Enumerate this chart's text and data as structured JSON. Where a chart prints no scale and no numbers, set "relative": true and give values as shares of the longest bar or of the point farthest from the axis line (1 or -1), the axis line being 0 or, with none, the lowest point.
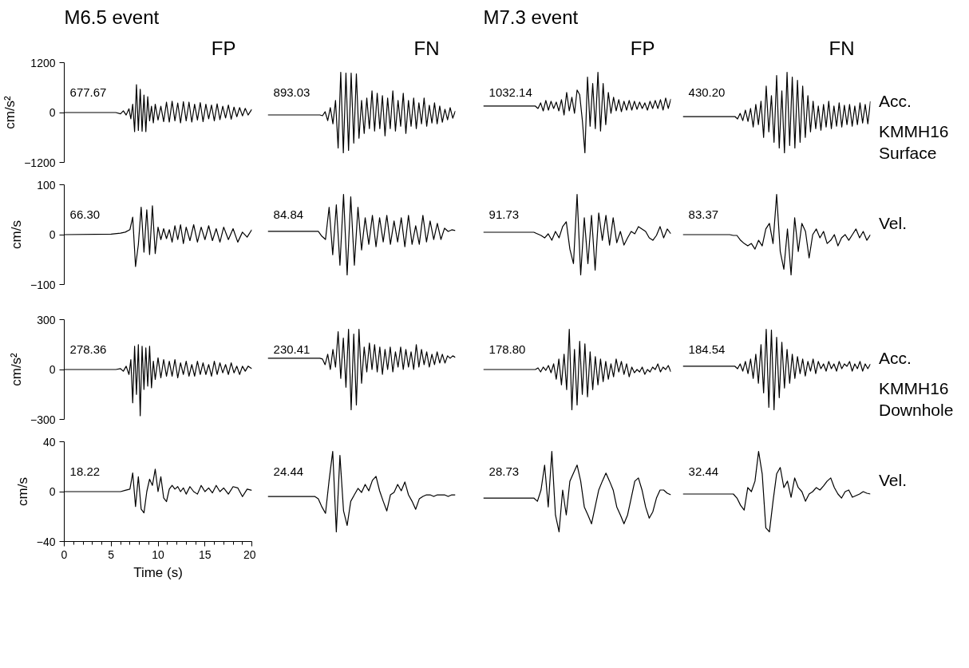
{
  "chart_data": [
    {
      "type": "line",
      "title": "M6.5 event",
      "subtitle": "FP",
      "ylabel": "cm/s²",
      "tick_labels": "y",
      "xlim": [
        0,
        20
      ],
      "ylim": [
        -1200,
        1200
      ],
      "yticks": [
        -1200,
        0,
        1200
      ],
      "annotations": [
        "677.67"
      ],
      "x": [
        0,
        5.5,
        6,
        6.3,
        6.6,
        6.9,
        7.1,
        7.3,
        7.5,
        7.7,
        7.9,
        8.1,
        8.3,
        8.5,
        8.7,
        8.9,
        9.1,
        9.3,
        9.5,
        9.7,
        10,
        10.3,
        10.6,
        10.9,
        11.2,
        11.5,
        11.8,
        12.1,
        12.4,
        12.7,
        13,
        13.3,
        13.6,
        13.9,
        14.2,
        14.5,
        14.8,
        15.1,
        15.4,
        15.7,
        16,
        16.3,
        16.6,
        16.9,
        17.2,
        17.5,
        17.8,
        18.1,
        18.4,
        18.7,
        19,
        19.3,
        19.6,
        20
      ],
      "series": [
        {
          "color": "#000000",
          "values": [
            0,
            0,
            -30,
            40,
            -60,
            90,
            -150,
            200,
            -460,
            670,
            -430,
            560,
            -450,
            420,
            -460,
            380,
            -200,
            150,
            -250,
            200,
            -180,
            150,
            -220,
            250,
            -230,
            270,
            -200,
            230,
            -250,
            260,
            -200,
            250,
            -230,
            200,
            -180,
            240,
            -220,
            200,
            -150,
            180,
            -200,
            210,
            -170,
            150,
            -130,
            180,
            -160,
            130,
            -100,
            120,
            -80,
            100,
            -60,
            80
          ]
        }
      ]
    },
    {
      "type": "line",
      "subtitle": "FN",
      "relative": true,
      "tick_labels": false,
      "annotations": [
        "893.03"
      ],
      "categories": [
        null,
        null,
        null,
        null,
        null,
        null,
        null,
        null,
        null,
        null,
        null,
        null,
        null,
        null,
        null,
        null,
        null,
        null,
        null,
        null,
        null,
        null,
        null,
        null,
        null,
        null,
        null,
        null,
        null,
        null,
        null,
        null,
        null,
        null,
        null,
        null,
        null,
        null,
        null,
        null,
        null,
        null,
        null,
        null,
        null,
        null,
        null,
        null,
        null,
        null,
        null,
        null,
        null,
        null,
        null,
        null,
        null,
        null,
        null,
        null,
        null,
        null,
        null,
        null,
        null,
        null,
        null,
        null,
        null,
        null,
        null,
        null,
        null
      ],
      "series": [
        {
          "color": "#000000",
          "values": [
            0.47,
            0.47,
            0.47,
            0.47,
            0.47,
            0.47,
            0.47,
            0.47,
            0.47,
            0.47,
            0.47,
            0.47,
            0.47,
            0.47,
            0.47,
            0.47,
            0.47,
            0.47,
            0.47,
            0.47,
            0.47,
            0.46,
            0.51,
            0.4,
            0.56,
            0.36,
            0.65,
            0.06,
            1,
            0,
            0.99,
            0.03,
            0.99,
            0.12,
            0.98,
            0.18,
            0.65,
            0.24,
            0.68,
            0.3,
            0.77,
            0.27,
            0.74,
            0.3,
            0.71,
            0.21,
            0.68,
            0.3,
            0.77,
            0.27,
            0.65,
            0.33,
            0.74,
            0.24,
            0.65,
            0.33,
            0.68,
            0.3,
            0.62,
            0.36,
            0.68,
            0.33,
            0.59,
            0.37,
            0.62,
            0.36,
            0.58,
            0.38,
            0.54,
            0.41,
            0.56,
            0.43,
            0.52
          ]
        }
      ]
    },
    {
      "type": "line",
      "title": "M7.3 event",
      "subtitle": "FP",
      "relative": true,
      "tick_labels": false,
      "annotations": [
        "1032.14"
      ],
      "categories": [
        null,
        null,
        null,
        null,
        null,
        null,
        null,
        null,
        null,
        null,
        null,
        null,
        null,
        null,
        null,
        null,
        null,
        null,
        null,
        null,
        null,
        null,
        null,
        null,
        null,
        null,
        null,
        null,
        null,
        null,
        null,
        null,
        null,
        null,
        null,
        null,
        null,
        null,
        null,
        null,
        null,
        null,
        null,
        null,
        null,
        null,
        null,
        null,
        null,
        null,
        null,
        null,
        null,
        null,
        null,
        null,
        null,
        null,
        null,
        null,
        null,
        null,
        null,
        null,
        null,
        null,
        null,
        null,
        null,
        null,
        null,
        null,
        null
      ],
      "series": [
        {
          "color": "#000000",
          "values": [
            0.58,
            0.58,
            0.58,
            0.58,
            0.58,
            0.58,
            0.58,
            0.58,
            0.58,
            0.58,
            0.58,
            0.58,
            0.58,
            0.58,
            0.58,
            0.58,
            0.58,
            0.58,
            0.58,
            0.58,
            0.58,
            0.55,
            0.62,
            0.52,
            0.65,
            0.53,
            0.64,
            0.55,
            0.63,
            0.52,
            0.66,
            0.47,
            0.75,
            0.52,
            0.69,
            0.49,
            0.78,
            0.72,
            0.41,
            0,
            0.94,
            0.33,
            0.86,
            0.3,
            1,
            0.27,
            0.86,
            0.35,
            0.75,
            0.49,
            0.69,
            0.52,
            0.66,
            0.51,
            0.64,
            0.53,
            0.65,
            0.53,
            0.64,
            0.54,
            0.63,
            0.55,
            0.62,
            0.53,
            0.64,
            0.55,
            0.65,
            0.55,
            0.66,
            0.53,
            0.68,
            0.55,
            0.67
          ]
        }
      ]
    },
    {
      "type": "line",
      "subtitle": "FN",
      "relative": true,
      "tick_labels": false,
      "annotations": [
        "430.20",
        "Acc.",
        "KMMH16\nSurface"
      ],
      "categories": [
        null,
        null,
        null,
        null,
        null,
        null,
        null,
        null,
        null,
        null,
        null,
        null,
        null,
        null,
        null,
        null,
        null,
        null,
        null,
        null,
        null,
        null,
        null,
        null,
        null,
        null,
        null,
        null,
        null,
        null,
        null,
        null,
        null,
        null,
        null,
        null,
        null,
        null,
        null,
        null,
        null,
        null,
        null,
        null,
        null,
        null,
        null,
        null,
        null,
        null,
        null,
        null,
        null,
        null,
        null,
        null,
        null,
        null,
        null,
        null,
        null,
        null,
        null,
        null,
        null,
        null,
        null,
        null,
        null,
        null,
        null,
        null,
        null
      ],
      "series": [
        {
          "color": "#000000",
          "values": [
            0.45,
            0.45,
            0.45,
            0.45,
            0.45,
            0.45,
            0.45,
            0.45,
            0.45,
            0.45,
            0.45,
            0.45,
            0.45,
            0.45,
            0.45,
            0.45,
            0.45,
            0.45,
            0.45,
            0.45,
            0.45,
            0.42,
            0.49,
            0.4,
            0.53,
            0.39,
            0.55,
            0.32,
            0.6,
            0.35,
            0.64,
            0.19,
            0.83,
            0.26,
            0.71,
            0.13,
            0.96,
            0.06,
            0.77,
            0,
            1,
            0.09,
            0.94,
            0.06,
            0.9,
            0.13,
            0.83,
            0.19,
            0.71,
            0.26,
            0.64,
            0.3,
            0.58,
            0.28,
            0.6,
            0.32,
            0.64,
            0.3,
            0.58,
            0.33,
            0.62,
            0.32,
            0.59,
            0.35,
            0.6,
            0.33,
            0.58,
            0.35,
            0.62,
            0.37,
            0.6,
            0.36,
            0.64
          ]
        }
      ]
    },
    {
      "type": "line",
      "ylabel": "cm/s",
      "tick_labels": "y",
      "xlim": [
        0,
        20
      ],
      "ylim": [
        -100,
        100
      ],
      "yticks": [
        -100,
        0,
        100
      ],
      "annotations": [
        "66.30"
      ],
      "x": [
        0,
        5,
        6,
        6.5,
        7,
        7.3,
        7.6,
        7.9,
        8.2,
        8.5,
        8.8,
        9.1,
        9.4,
        9.7,
        10,
        10.3,
        10.6,
        10.9,
        11.2,
        11.5,
        11.8,
        12.1,
        12.4,
        12.7,
        13,
        13.4,
        13.8,
        14.2,
        14.6,
        15,
        15.4,
        15.8,
        16.2,
        16.6,
        17,
        17.5,
        18,
        18.5,
        19,
        19.5,
        20
      ],
      "series": [
        {
          "color": "#000000",
          "values": [
            0,
            1,
            3,
            5,
            10,
            35,
            -64,
            -20,
            55,
            -35,
            50,
            -40,
            58,
            -38,
            15,
            -10,
            12,
            -8,
            10,
            -15,
            18,
            -10,
            20,
            -18,
            15,
            -12,
            20,
            -15,
            15,
            -10,
            18,
            -12,
            12,
            -15,
            15,
            -10,
            12,
            -15,
            5,
            -5,
            10
          ]
        }
      ]
    },
    {
      "type": "line",
      "relative": true,
      "tick_labels": false,
      "annotations": [
        "84.84"
      ],
      "categories": [
        null,
        null,
        null,
        null,
        null,
        null,
        null,
        null,
        null,
        null,
        null,
        null,
        null,
        null,
        null,
        null,
        null,
        null,
        null,
        null,
        null,
        null,
        null,
        null,
        null,
        null,
        null,
        null,
        null,
        null,
        null,
        null,
        null,
        null,
        null,
        null,
        null,
        null,
        null,
        null,
        null,
        null,
        null,
        null,
        null,
        null,
        null,
        null,
        null,
        null,
        null,
        null,
        null
      ],
      "series": [
        {
          "color": "#000000",
          "values": [
            0.54,
            0.54,
            0.54,
            0.54,
            0.54,
            0.54,
            0.54,
            0.54,
            0.54,
            0.54,
            0.54,
            0.54,
            0.54,
            0.54,
            0.54,
            0.48,
            0.44,
            0.84,
            0.25,
            0.87,
            0.12,
            1,
            0,
            0.97,
            0.12,
            0.84,
            0.31,
            0.71,
            0.38,
            0.74,
            0.35,
            0.71,
            0.41,
            0.74,
            0.38,
            0.67,
            0.41,
            0.71,
            0.35,
            0.74,
            0.38,
            0.61,
            0.38,
            0.74,
            0.41,
            0.67,
            0.44,
            0.64,
            0.44,
            0.58,
            0.54,
            0.56,
            0.55
          ]
        }
      ]
    },
    {
      "type": "line",
      "relative": true,
      "tick_labels": false,
      "annotations": [
        "91.73"
      ],
      "categories": [
        null,
        null,
        null,
        null,
        null,
        null,
        null,
        null,
        null,
        null,
        null,
        null,
        null,
        null,
        null,
        null,
        null,
        null,
        null,
        null,
        null,
        null,
        null,
        null,
        null,
        null,
        null,
        null,
        null,
        null,
        null,
        null,
        null,
        null,
        null,
        null,
        null,
        null,
        null,
        null,
        null,
        null,
        null,
        null,
        null,
        null,
        null,
        null,
        null,
        null,
        null,
        null,
        null
      ],
      "series": [
        {
          "color": "#000000",
          "values": [
            0.53,
            0.53,
            0.53,
            0.53,
            0.53,
            0.53,
            0.53,
            0.53,
            0.53,
            0.53,
            0.53,
            0.53,
            0.53,
            0.53,
            0.53,
            0.51,
            0.49,
            0.46,
            0.51,
            0.43,
            0.54,
            0.46,
            0.6,
            0.66,
            0.32,
            0.14,
            1,
            0,
            0.71,
            0.14,
            0.74,
            0.06,
            0.77,
            0.43,
            0.74,
            0.37,
            0.71,
            0.4,
            0.54,
            0.37,
            0.46,
            0.54,
            0.51,
            0.6,
            0.57,
            0.54,
            0.46,
            0.43,
            0.49,
            0.6,
            0.46,
            0.57,
            0.51
          ]
        }
      ]
    },
    {
      "type": "line",
      "relative": true,
      "tick_labels": false,
      "annotations": [
        "83.37",
        "Vel."
      ],
      "categories": [
        null,
        null,
        null,
        null,
        null,
        null,
        null,
        null,
        null,
        null,
        null,
        null,
        null,
        null,
        null,
        null,
        null,
        null,
        null,
        null,
        null,
        null,
        null,
        null,
        null,
        null,
        null,
        null,
        null,
        null,
        null,
        null,
        null,
        null,
        null,
        null,
        null,
        null,
        null,
        null,
        null,
        null,
        null,
        null,
        null,
        null,
        null,
        null,
        null,
        null,
        null,
        null,
        null
      ],
      "series": [
        {
          "color": "#000000",
          "values": [
            0.5,
            0.5,
            0.5,
            0.5,
            0.5,
            0.5,
            0.5,
            0.5,
            0.5,
            0.5,
            0.5,
            0.5,
            0.5,
            0.5,
            0.49,
            0.49,
            0.43,
            0.39,
            0.36,
            0.39,
            0.32,
            0.43,
            0.36,
            0.57,
            0.64,
            0.39,
            1,
            0.29,
            0.07,
            0.57,
            0,
            0.71,
            0.29,
            0.64,
            0.54,
            0.21,
            0.5,
            0.57,
            0.46,
            0.54,
            0.39,
            0.43,
            0.5,
            0.36,
            0.46,
            0.5,
            0.43,
            0.5,
            0.57,
            0.46,
            0.54,
            0.43,
            0.5
          ]
        }
      ]
    },
    {
      "type": "line",
      "ylabel": "cm/s²",
      "tick_labels": "y",
      "xlim": [
        0,
        20
      ],
      "ylim": [
        -300,
        300
      ],
      "yticks": [
        -300,
        0,
        300
      ],
      "annotations": [
        "278.36"
      ],
      "x": [
        0,
        5.5,
        6,
        6.3,
        6.6,
        6.9,
        7.1,
        7.3,
        7.5,
        7.7,
        7.9,
        8.1,
        8.3,
        8.5,
        8.7,
        8.9,
        9.1,
        9.3,
        9.5,
        9.7,
        10,
        10.3,
        10.6,
        10.9,
        11.2,
        11.5,
        11.8,
        12.1,
        12.4,
        12.7,
        13,
        13.3,
        13.6,
        13.9,
        14.2,
        14.5,
        14.8,
        15.1,
        15.4,
        15.7,
        16,
        16.3,
        16.6,
        16.9,
        17.2,
        17.5,
        17.8,
        18.1,
        18.4,
        18.7,
        19,
        19.3,
        19.6,
        20
      ],
      "series": [
        {
          "color": "#000000",
          "values": [
            0,
            0,
            5,
            -10,
            20,
            -30,
            60,
            -200,
            140,
            -150,
            150,
            -278,
            140,
            -120,
            130,
            -100,
            140,
            -110,
            50,
            -60,
            70,
            -50,
            60,
            -40,
            50,
            -40,
            60,
            -50,
            40,
            -30,
            50,
            -40,
            30,
            -40,
            50,
            -30,
            40,
            -30,
            30,
            -40,
            50,
            -30,
            40,
            -20,
            30,
            -30,
            40,
            -20,
            20,
            -30,
            20,
            -10,
            20,
            5
          ]
        }
      ]
    },
    {
      "type": "line",
      "relative": true,
      "tick_labels": false,
      "annotations": [
        "230.41"
      ],
      "categories": [
        null,
        null,
        null,
        null,
        null,
        null,
        null,
        null,
        null,
        null,
        null,
        null,
        null,
        null,
        null,
        null,
        null,
        null,
        null,
        null,
        null,
        null,
        null,
        null,
        null,
        null,
        null,
        null,
        null,
        null,
        null,
        null,
        null,
        null,
        null,
        null,
        null,
        null,
        null,
        null,
        null,
        null,
        null,
        null,
        null,
        null,
        null,
        null,
        null,
        null,
        null,
        null,
        null,
        null,
        null,
        null,
        null,
        null,
        null,
        null,
        null,
        null,
        null,
        null,
        null,
        null,
        null,
        null,
        null,
        null,
        null,
        null,
        null
      ],
      "series": [
        {
          "color": "#000000",
          "values": [
            0.64,
            0.64,
            0.64,
            0.64,
            0.64,
            0.64,
            0.64,
            0.64,
            0.64,
            0.64,
            0.64,
            0.64,
            0.64,
            0.64,
            0.64,
            0.64,
            0.64,
            0.64,
            0.64,
            0.64,
            0.64,
            0.63,
            0.56,
            0.69,
            0.5,
            0.75,
            0.53,
            0.97,
            0.39,
            0.89,
            0.28,
            1,
            0,
            0.94,
            0.06,
            1,
            0.33,
            0.78,
            0.47,
            0.83,
            0.5,
            0.81,
            0.47,
            0.78,
            0.44,
            0.75,
            0.5,
            0.78,
            0.47,
            0.72,
            0.53,
            0.78,
            0.5,
            0.75,
            0.53,
            0.72,
            0.5,
            0.81,
            0.53,
            0.75,
            0.56,
            0.72,
            0.53,
            0.69,
            0.56,
            0.72,
            0.58,
            0.69,
            0.58,
            0.67,
            0.64,
            0.67,
            0.65
          ]
        }
      ]
    },
    {
      "type": "line",
      "relative": true,
      "tick_labels": false,
      "annotations": [
        "178.80"
      ],
      "categories": [
        null,
        null,
        null,
        null,
        null,
        null,
        null,
        null,
        null,
        null,
        null,
        null,
        null,
        null,
        null,
        null,
        null,
        null,
        null,
        null,
        null,
        null,
        null,
        null,
        null,
        null,
        null,
        null,
        null,
        null,
        null,
        null,
        null,
        null,
        null,
        null,
        null,
        null,
        null,
        null,
        null,
        null,
        null,
        null,
        null,
        null,
        null,
        null,
        null,
        null,
        null,
        null,
        null,
        null,
        null,
        null,
        null,
        null,
        null,
        null,
        null,
        null,
        null,
        null,
        null,
        null,
        null,
        null,
        null,
        null,
        null,
        null,
        null
      ],
      "series": [
        {
          "color": "#000000",
          "values": [
            0.5,
            0.5,
            0.5,
            0.5,
            0.5,
            0.5,
            0.5,
            0.5,
            0.5,
            0.5,
            0.5,
            0.5,
            0.5,
            0.5,
            0.5,
            0.5,
            0.5,
            0.5,
            0.5,
            0.5,
            0.5,
            0.52,
            0.47,
            0.53,
            0.49,
            0.55,
            0.46,
            0.57,
            0.38,
            0.63,
            0.31,
            0.69,
            0.25,
            1,
            0,
            0.75,
            0.06,
            0.85,
            0.19,
            0.82,
            0.16,
            0.72,
            0.25,
            0.66,
            0.31,
            0.63,
            0.35,
            0.6,
            0.38,
            0.57,
            0.41,
            0.63,
            0.47,
            0.6,
            0.44,
            0.57,
            0.41,
            0.53,
            0.46,
            0.5,
            0.47,
            0.53,
            0.44,
            0.5,
            0.47,
            0.53,
            0.5,
            0.57,
            0.47,
            0.53,
            0.5,
            0.55,
            0.47
          ]
        }
      ]
    },
    {
      "type": "line",
      "relative": true,
      "tick_labels": false,
      "annotations": [
        "184.54",
        "Acc.",
        "KMMH16\nDownhole"
      ],
      "categories": [
        null,
        null,
        null,
        null,
        null,
        null,
        null,
        null,
        null,
        null,
        null,
        null,
        null,
        null,
        null,
        null,
        null,
        null,
        null,
        null,
        null,
        null,
        null,
        null,
        null,
        null,
        null,
        null,
        null,
        null,
        null,
        null,
        null,
        null,
        null,
        null,
        null,
        null,
        null,
        null,
        null,
        null,
        null,
        null,
        null,
        null,
        null,
        null,
        null,
        null,
        null,
        null,
        null,
        null,
        null,
        null,
        null,
        null,
        null,
        null,
        null,
        null,
        null,
        null,
        null,
        null,
        null,
        null,
        null,
        null,
        null,
        null,
        null
      ],
      "series": [
        {
          "color": "#000000",
          "values": [
            0.54,
            0.54,
            0.54,
            0.54,
            0.54,
            0.54,
            0.54,
            0.54,
            0.54,
            0.54,
            0.54,
            0.54,
            0.54,
            0.54,
            0.54,
            0.54,
            0.54,
            0.54,
            0.54,
            0.54,
            0.54,
            0.51,
            0.57,
            0.48,
            0.6,
            0.45,
            0.63,
            0.39,
            0.69,
            0.33,
            0.81,
            0.21,
            1,
            0.03,
            0.99,
            0,
            0.9,
            0.15,
            0.84,
            0.27,
            0.75,
            0.33,
            0.69,
            0.39,
            0.66,
            0.45,
            0.63,
            0.42,
            0.6,
            0.48,
            0.63,
            0.45,
            0.6,
            0.51,
            0.57,
            0.48,
            0.6,
            0.51,
            0.57,
            0.48,
            0.6,
            0.51,
            0.57,
            0.54,
            0.6,
            0.48,
            0.57,
            0.51,
            0.6,
            0.48,
            0.57,
            0.51,
            0.57
          ]
        }
      ]
    },
    {
      "type": "line",
      "ylabel": "cm/s",
      "xlabel": "Time (s)",
      "xlim": [
        0,
        20
      ],
      "ylim": [
        -40,
        40
      ],
      "yticks": [
        -40,
        0,
        40
      ],
      "annotations": [
        "18.22"
      ],
      "xticks": [
        0,
        {
          "value": 1,
          "label": null
        },
        {
          "value": 2,
          "label": null
        },
        {
          "value": 3,
          "label": null
        },
        {
          "value": 4,
          "label": null
        },
        5,
        {
          "value": 6,
          "label": null
        },
        {
          "value": 7,
          "label": null
        },
        {
          "value": 8,
          "label": null
        },
        {
          "value": 9,
          "label": null
        },
        10,
        {
          "value": 11,
          "label": null
        },
        {
          "value": 12,
          "label": null
        },
        {
          "value": 13,
          "label": null
        },
        {
          "value": 14,
          "label": null
        },
        15,
        {
          "value": 16,
          "label": null
        },
        {
          "value": 17,
          "label": null
        },
        {
          "value": 18,
          "label": null
        },
        {
          "value": 19,
          "label": null
        },
        20
      ],
      "x": [
        0,
        5,
        6,
        6.5,
        7,
        7.3,
        7.6,
        7.9,
        8.2,
        8.5,
        8.8,
        9.1,
        9.4,
        9.7,
        10,
        10.3,
        10.6,
        10.9,
        11.2,
        11.5,
        11.8,
        12.1,
        12.4,
        12.7,
        13,
        13.4,
        13.8,
        14.2,
        14.6,
        15,
        15.4,
        15.8,
        16.2,
        16.6,
        17,
        17.5,
        18,
        18.5,
        19,
        19.5,
        20
      ],
      "series": [
        {
          "color": "#000000",
          "values": [
            0,
            0,
            0,
            1,
            2,
            15,
            -12,
            12,
            -14,
            -17,
            0,
            10,
            5,
            18,
            0,
            12,
            -5,
            -8,
            2,
            5,
            2,
            4,
            0,
            3,
            -2,
            4,
            0,
            -2,
            5,
            0,
            3,
            -1,
            5,
            0,
            3,
            -2,
            4,
            3,
            -4,
            2,
            1
          ]
        }
      ]
    },
    {
      "type": "line",
      "relative": true,
      "tick_labels": false,
      "annotations": [
        "24.44"
      ],
      "categories": [
        null,
        null,
        null,
        null,
        null,
        null,
        null,
        null,
        null,
        null,
        null,
        null,
        null,
        null,
        null,
        null,
        null,
        null,
        null,
        null,
        null,
        null,
        null,
        null,
        null,
        null,
        null,
        null,
        null,
        null,
        null,
        null,
        null,
        null,
        null,
        null,
        null,
        null,
        null,
        null,
        null,
        null,
        null,
        null,
        null,
        null,
        null,
        null,
        null,
        null,
        null,
        null,
        null
      ],
      "series": [
        {
          "color": "#000000",
          "values": [
            0.44,
            0.44,
            0.44,
            0.44,
            0.44,
            0.44,
            0.44,
            0.44,
            0.44,
            0.44,
            0.44,
            0.44,
            0.44,
            0.44,
            0.41,
            0.31,
            0.23,
            0.64,
            1,
            0,
            0.95,
            0.26,
            0.08,
            0.38,
            0.46,
            0.54,
            0.49,
            0.59,
            0.51,
            0.64,
            0.69,
            0.51,
            0.38,
            0.26,
            0.46,
            0.49,
            0.59,
            0.51,
            0.62,
            0.46,
            0.38,
            0.28,
            0.41,
            0.44,
            0.46,
            0.46,
            0.44,
            0.46,
            0.46,
            0.46,
            0.44,
            0.46,
            0.46
          ]
        }
      ]
    },
    {
      "type": "line",
      "relative": true,
      "tick_labels": false,
      "annotations": [
        "28.73"
      ],
      "categories": [
        null,
        null,
        null,
        null,
        null,
        null,
        null,
        null,
        null,
        null,
        null,
        null,
        null,
        null,
        null,
        null,
        null,
        null,
        null,
        null,
        null,
        null,
        null,
        null,
        null,
        null,
        null,
        null,
        null,
        null,
        null,
        null,
        null,
        null,
        null,
        null,
        null,
        null,
        null,
        null,
        null,
        null,
        null,
        null,
        null,
        null,
        null,
        null,
        null,
        null,
        null,
        null,
        null
      ],
      "series": [
        {
          "color": "#000000",
          "values": [
            0.42,
            0.42,
            0.42,
            0.42,
            0.42,
            0.42,
            0.42,
            0.42,
            0.42,
            0.42,
            0.42,
            0.42,
            0.42,
            0.42,
            0.42,
            0.38,
            0.52,
            0.83,
            0.31,
            1,
            0.21,
            0,
            0.52,
            0.21,
            0.63,
            0.73,
            0.83,
            0.63,
            0.31,
            0.21,
            0.1,
            0.31,
            0.52,
            0.63,
            0.73,
            0.63,
            0.52,
            0.31,
            0.21,
            0.1,
            0.21,
            0.42,
            0.63,
            0.67,
            0.52,
            0.31,
            0.17,
            0.25,
            0.42,
            0.52,
            0.52,
            0.48,
            0.46
          ]
        }
      ]
    },
    {
      "type": "line",
      "relative": true,
      "tick_labels": false,
      "annotations": [
        "32.44",
        "Vel."
      ],
      "categories": [
        null,
        null,
        null,
        null,
        null,
        null,
        null,
        null,
        null,
        null,
        null,
        null,
        null,
        null,
        null,
        null,
        null,
        null,
        null,
        null,
        null,
        null,
        null,
        null,
        null,
        null,
        null,
        null,
        null,
        null,
        null,
        null,
        null,
        null,
        null,
        null,
        null,
        null,
        null,
        null,
        null,
        null,
        null,
        null,
        null,
        null,
        null,
        null,
        null,
        null,
        null,
        null,
        null
      ],
      "series": [
        {
          "color": "#000000",
          "values": [
            0.47,
            0.47,
            0.47,
            0.47,
            0.47,
            0.47,
            0.47,
            0.47,
            0.47,
            0.47,
            0.47,
            0.47,
            0.47,
            0.47,
            0.47,
            0.42,
            0.33,
            0.27,
            0.55,
            0.5,
            0.63,
            1,
            0.72,
            0.05,
            0,
            0.38,
            0.72,
            0.8,
            0.55,
            0.63,
            0.43,
            0.67,
            0.55,
            0.5,
            0.38,
            0.47,
            0.5,
            0.55,
            0.52,
            0.57,
            0.63,
            0.67,
            0.55,
            0.47,
            0.42,
            0.5,
            0.52,
            0.43,
            0.45,
            0.47,
            0.5,
            0.48,
            0.47
          ]
        }
      ]
    }
  ]
}
